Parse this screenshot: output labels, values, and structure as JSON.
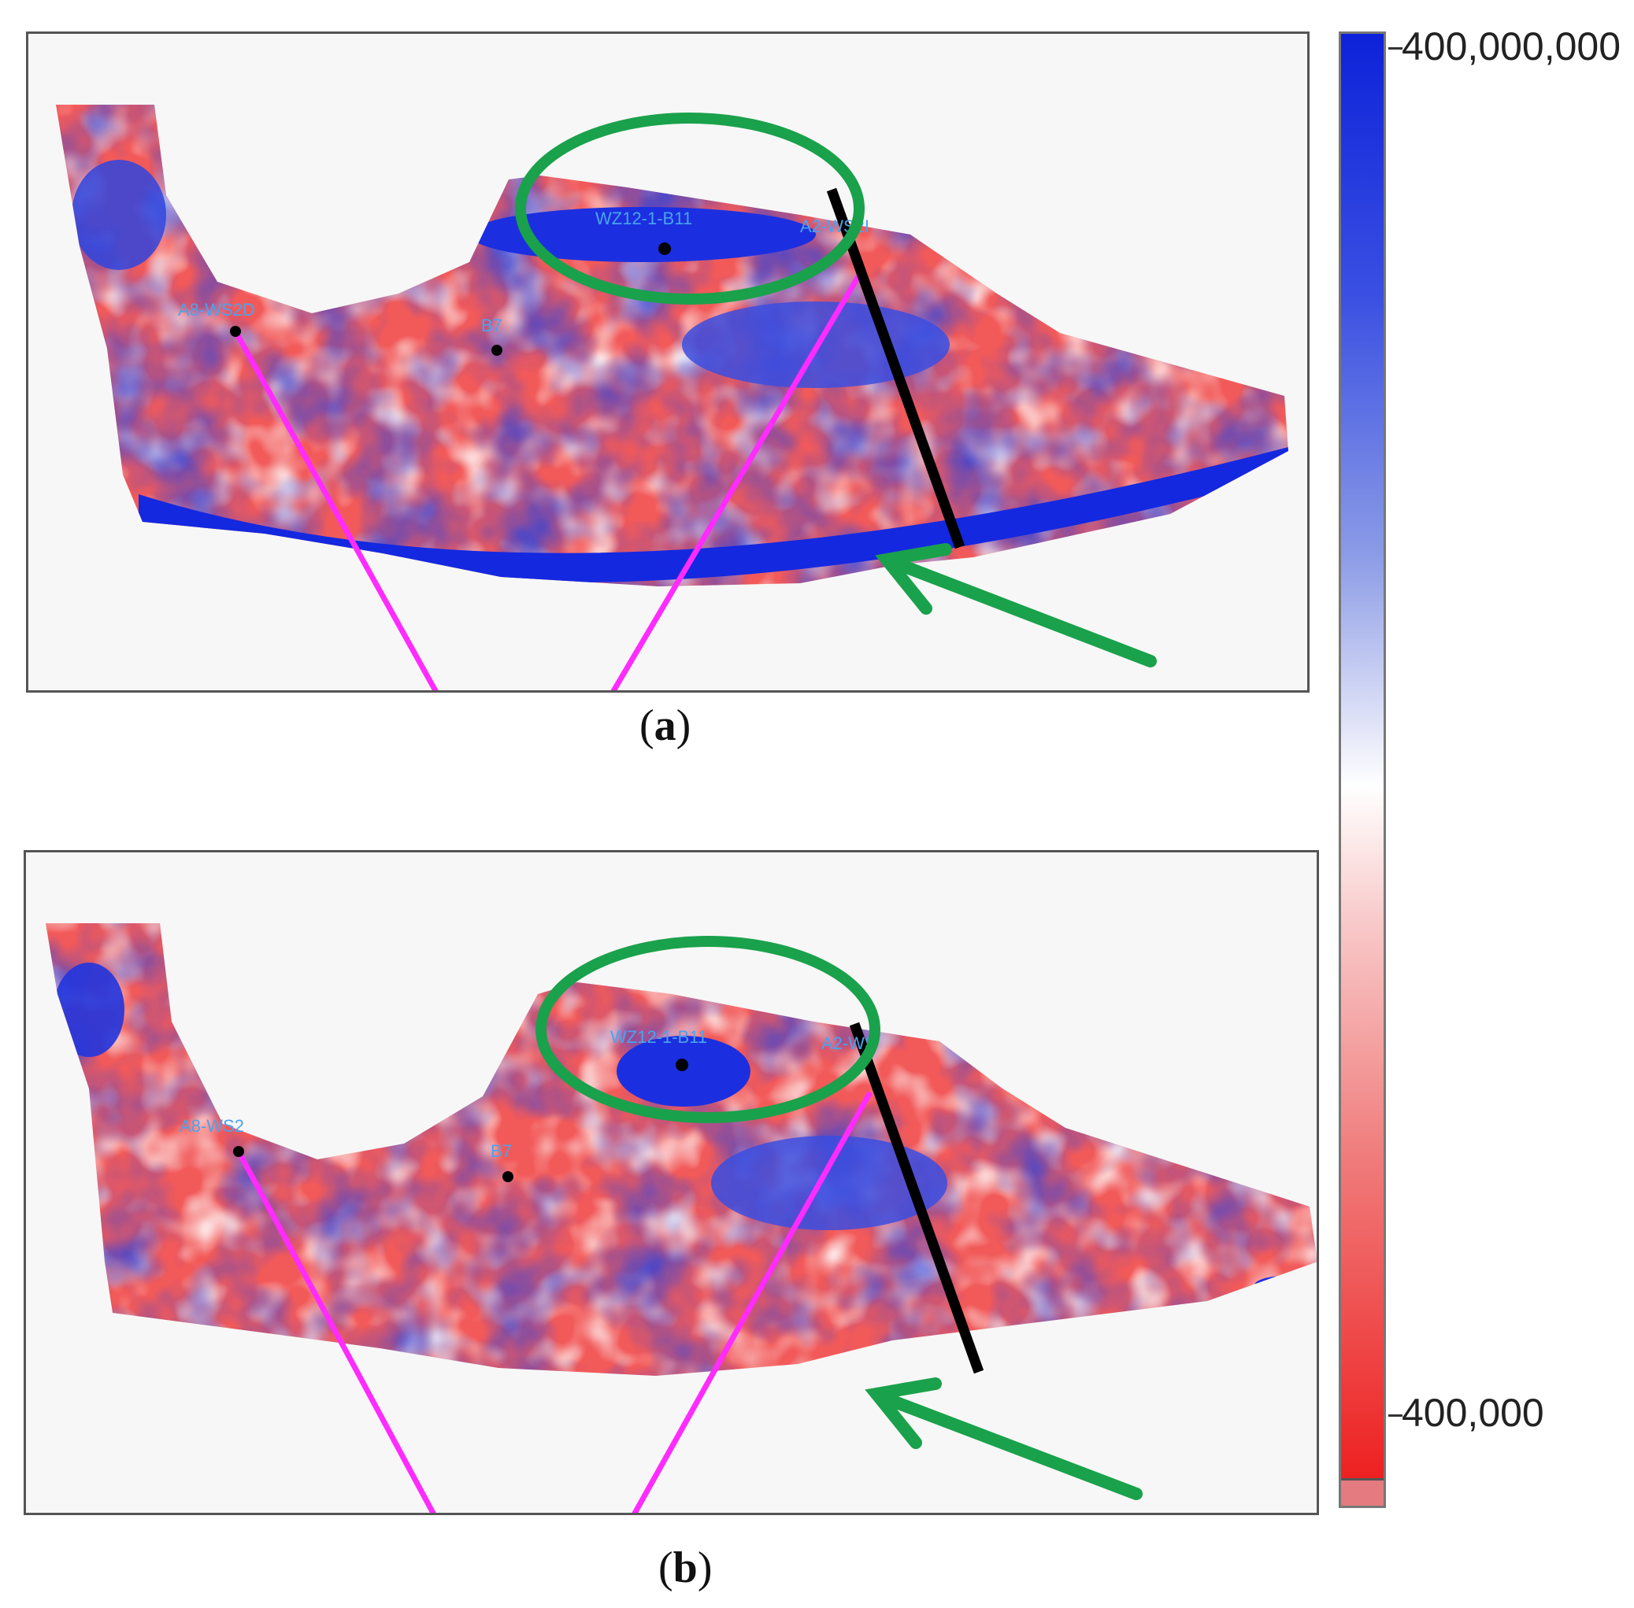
{
  "figure": {
    "panel_a": {
      "caption_open": "(",
      "caption_letter": "a",
      "caption_close": ")",
      "wells": [
        {
          "name": "A8-WS2D"
        },
        {
          "name": "B7"
        },
        {
          "name": "WZ12-1-B11"
        },
        {
          "name": "A2-WS2I"
        }
      ]
    },
    "panel_b": {
      "caption_open": "(",
      "caption_letter": "b",
      "caption_close": ")",
      "wells": [
        {
          "name": "A8-WS2"
        },
        {
          "name": "B7"
        },
        {
          "name": "WZ12-1-B11"
        },
        {
          "name": "A2-WS"
        }
      ]
    },
    "colorbar": {
      "max_label": "400,000,000",
      "min_label": "400,000",
      "colors": [
        "#0d22d9",
        "#ffffff",
        "#ee2020"
      ]
    },
    "annotations": {
      "circle_color": "#1aa14b",
      "arrow_color": "#1aa14b",
      "fault_line_color": "#000000",
      "well_path_color": "#ff2bff"
    }
  }
}
